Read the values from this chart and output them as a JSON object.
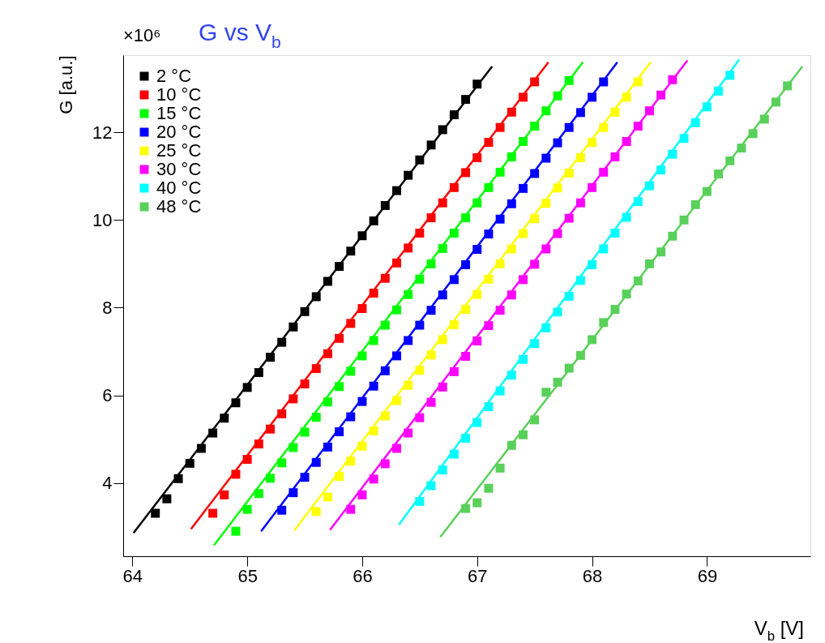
{
  "chart_data": {
    "type": "scatter",
    "title": "G vs V$_{b}$",
    "xlabel": "V$_{b}$ [V]",
    "ylabel": "G [a.u.]",
    "annotations": [
      "×10⁶"
    ],
    "xlim": [
      63.92,
      69.9
    ],
    "ylim": [
      2.33,
      13.76
    ],
    "xticks": [
      {
        "value": 64,
        "label": "64"
      },
      {
        "value": 65,
        "label": "65"
      },
      {
        "value": 66,
        "label": "66"
      },
      {
        "value": 67,
        "label": "67"
      },
      {
        "value": 68,
        "label": "68"
      },
      {
        "value": 69,
        "label": "69"
      }
    ],
    "yticks": [
      4,
      6,
      8,
      10,
      12
    ],
    "grid": false,
    "legend": "top left",
    "marker": "square",
    "series": [
      {
        "name": "2 °C",
        "color": "#000000",
        "x": [
          64.2,
          64.3,
          64.4,
          64.5,
          64.6,
          64.7,
          64.8,
          64.9,
          65.0,
          65.1,
          65.2,
          65.3,
          65.4,
          65.5,
          65.6,
          65.7,
          65.8,
          65.9,
          66.0,
          66.1,
          66.2,
          66.3,
          66.4,
          66.5,
          66.6,
          66.7,
          66.8,
          66.9,
          67.0
        ],
        "values": [
          3.31,
          3.64,
          4.1,
          4.45,
          4.79,
          5.14,
          5.48,
          5.83,
          6.18,
          6.52,
          6.87,
          7.21,
          7.56,
          7.91,
          8.25,
          8.6,
          8.94,
          9.29,
          9.64,
          9.98,
          10.33,
          10.67,
          11.02,
          11.37,
          11.71,
          12.06,
          12.4,
          12.75,
          13.1
        ]
      },
      {
        "name": "10 °C",
        "color": "#ff0000",
        "x": [
          64.7,
          64.8,
          64.9,
          65.0,
          65.1,
          65.2,
          65.3,
          65.4,
          65.5,
          65.6,
          65.7,
          65.8,
          65.9,
          66.0,
          66.1,
          66.2,
          66.3,
          66.4,
          66.5,
          66.6,
          66.7,
          66.8,
          66.9,
          67.0,
          67.1,
          67.2,
          67.3,
          67.4,
          67.5
        ],
        "values": [
          3.31,
          3.73,
          4.2,
          4.54,
          4.89,
          5.23,
          5.58,
          5.92,
          6.26,
          6.61,
          6.95,
          7.3,
          7.64,
          7.98,
          8.33,
          8.67,
          9.02,
          9.36,
          9.7,
          10.05,
          10.39,
          10.74,
          11.08,
          11.42,
          11.77,
          12.11,
          12.46,
          12.8,
          13.15
        ]
      },
      {
        "name": "15 °C",
        "color": "#00ff00",
        "x": [
          64.9,
          65.0,
          65.1,
          65.2,
          65.3,
          65.4,
          65.5,
          65.6,
          65.7,
          65.8,
          65.9,
          66.0,
          66.1,
          66.2,
          66.3,
          66.4,
          66.5,
          66.6,
          66.7,
          66.8,
          66.9,
          67.0,
          67.1,
          67.2,
          67.3,
          67.4,
          67.5,
          67.6,
          67.7,
          67.8
        ],
        "values": [
          2.9,
          3.4,
          3.76,
          4.11,
          4.46,
          4.81,
          5.16,
          5.5,
          5.85,
          6.2,
          6.55,
          6.9,
          7.25,
          7.6,
          7.95,
          8.3,
          8.65,
          9.0,
          9.35,
          9.7,
          10.05,
          10.39,
          10.74,
          11.09,
          11.44,
          11.79,
          12.14,
          12.49,
          12.83,
          13.18
        ]
      },
      {
        "name": "20 °C",
        "color": "#0000ff",
        "x": [
          65.3,
          65.4,
          65.5,
          65.6,
          65.7,
          65.8,
          65.9,
          66.0,
          66.1,
          66.2,
          66.3,
          66.4,
          66.5,
          66.6,
          66.7,
          66.8,
          66.9,
          67.0,
          67.1,
          67.2,
          67.3,
          67.4,
          67.5,
          67.6,
          67.7,
          67.8,
          67.9,
          68.0,
          68.1
        ],
        "values": [
          3.38,
          3.78,
          4.13,
          4.47,
          4.82,
          5.17,
          5.51,
          5.86,
          6.21,
          6.56,
          6.9,
          7.25,
          7.6,
          7.94,
          8.29,
          8.64,
          8.98,
          9.33,
          9.68,
          10.02,
          10.37,
          10.72,
          11.06,
          11.41,
          11.76,
          12.11,
          12.45,
          12.8,
          13.15
        ]
      },
      {
        "name": "25 °C",
        "color": "#ffff00",
        "x": [
          65.6,
          65.7,
          65.8,
          65.9,
          66.0,
          66.1,
          66.2,
          66.3,
          66.4,
          66.5,
          66.6,
          66.7,
          66.8,
          66.9,
          67.0,
          67.1,
          67.2,
          67.3,
          67.4,
          67.5,
          67.6,
          67.7,
          67.8,
          67.9,
          68.0,
          68.1,
          68.2,
          68.3,
          68.4
        ],
        "values": [
          3.35,
          3.68,
          4.15,
          4.5,
          4.84,
          5.19,
          5.53,
          5.88,
          6.23,
          6.57,
          6.92,
          7.27,
          7.61,
          7.96,
          8.3,
          8.65,
          9.0,
          9.34,
          9.69,
          10.03,
          10.38,
          10.73,
          11.07,
          11.42,
          11.77,
          12.11,
          12.46,
          12.8,
          13.15
        ]
      },
      {
        "name": "30 °C",
        "color": "#ff00ff",
        "x": [
          65.9,
          66.0,
          66.1,
          66.2,
          66.3,
          66.4,
          66.5,
          66.6,
          66.7,
          66.8,
          66.9,
          67.0,
          67.1,
          67.2,
          67.3,
          67.4,
          67.5,
          67.6,
          67.7,
          67.8,
          67.9,
          68.0,
          68.1,
          68.2,
          68.3,
          68.4,
          68.5,
          68.6,
          68.7
        ],
        "values": [
          3.4,
          3.73,
          4.09,
          4.44,
          4.79,
          5.14,
          5.49,
          5.84,
          6.19,
          6.54,
          6.89,
          7.24,
          7.59,
          7.94,
          8.29,
          8.64,
          8.99,
          9.34,
          9.69,
          10.04,
          10.39,
          10.74,
          11.09,
          11.44,
          11.79,
          12.14,
          12.49,
          12.85,
          13.2
        ]
      },
      {
        "name": "40 °C",
        "color": "#00ffff",
        "x": [
          66.5,
          66.6,
          66.7,
          66.8,
          66.9,
          67.0,
          67.1,
          67.2,
          67.3,
          67.4,
          67.5,
          67.6,
          67.7,
          67.8,
          67.9,
          68.0,
          68.1,
          68.2,
          68.3,
          68.4,
          68.5,
          68.6,
          68.7,
          68.8,
          68.9,
          69.0,
          69.1,
          69.2
        ],
        "values": [
          3.58,
          3.94,
          4.3,
          4.66,
          5.02,
          5.38,
          5.74,
          6.1,
          6.46,
          6.82,
          7.18,
          7.54,
          7.9,
          8.26,
          8.62,
          8.98,
          9.34,
          9.7,
          10.06,
          10.42,
          10.78,
          11.14,
          11.5,
          11.86,
          12.22,
          12.58,
          12.94,
          13.3
        ]
      },
      {
        "name": "48 °C",
        "color": "#59d05a",
        "x": [
          66.9,
          67.0,
          67.1,
          67.2,
          67.3,
          67.4,
          67.5,
          67.6,
          67.7,
          67.8,
          67.9,
          68.0,
          68.1,
          68.2,
          68.3,
          68.4,
          68.5,
          68.6,
          68.7,
          68.8,
          68.9,
          69.0,
          69.1,
          69.2,
          69.3,
          69.4,
          69.5,
          69.6,
          69.7
        ],
        "values": [
          3.42,
          3.55,
          3.88,
          4.34,
          4.86,
          5.1,
          5.44,
          6.07,
          6.3,
          6.62,
          6.91,
          7.27,
          7.66,
          7.96,
          8.31,
          8.61,
          9.0,
          9.27,
          9.63,
          10.0,
          10.35,
          10.65,
          11.05,
          11.35,
          11.64,
          11.97,
          12.3,
          12.69,
          13.06
        ]
      },
      {
        "type": "line",
        "marker": "none",
        "color": "#000000",
        "x": [
          64.01,
          67.13
        ],
        "values": [
          2.86,
          13.5
        ]
      },
      {
        "type": "line",
        "marker": "none",
        "color": "#ff0000",
        "x": [
          64.51,
          67.62
        ],
        "values": [
          2.95,
          13.6
        ]
      },
      {
        "type": "line",
        "marker": "none",
        "color": "#00ff00",
        "x": [
          64.71,
          67.92
        ],
        "values": [
          2.58,
          13.6
        ]
      },
      {
        "type": "line",
        "marker": "none",
        "color": "#0000ff",
        "x": [
          65.12,
          68.22
        ],
        "values": [
          2.9,
          13.6
        ]
      },
      {
        "type": "line",
        "marker": "none",
        "color": "#ffff00",
        "x": [
          65.41,
          68.51
        ],
        "values": [
          2.92,
          13.6
        ]
      },
      {
        "type": "line",
        "marker": "none",
        "color": "#ff00ff",
        "x": [
          65.72,
          68.83
        ],
        "values": [
          2.93,
          13.64
        ]
      },
      {
        "type": "line",
        "marker": "none",
        "color": "#00ffff",
        "x": [
          66.32,
          69.28
        ],
        "values": [
          3.05,
          13.66
        ]
      },
      {
        "type": "line",
        "marker": "none",
        "color": "#59d05a",
        "x": [
          66.68,
          69.83
        ],
        "values": [
          2.77,
          13.5
        ]
      }
    ]
  }
}
